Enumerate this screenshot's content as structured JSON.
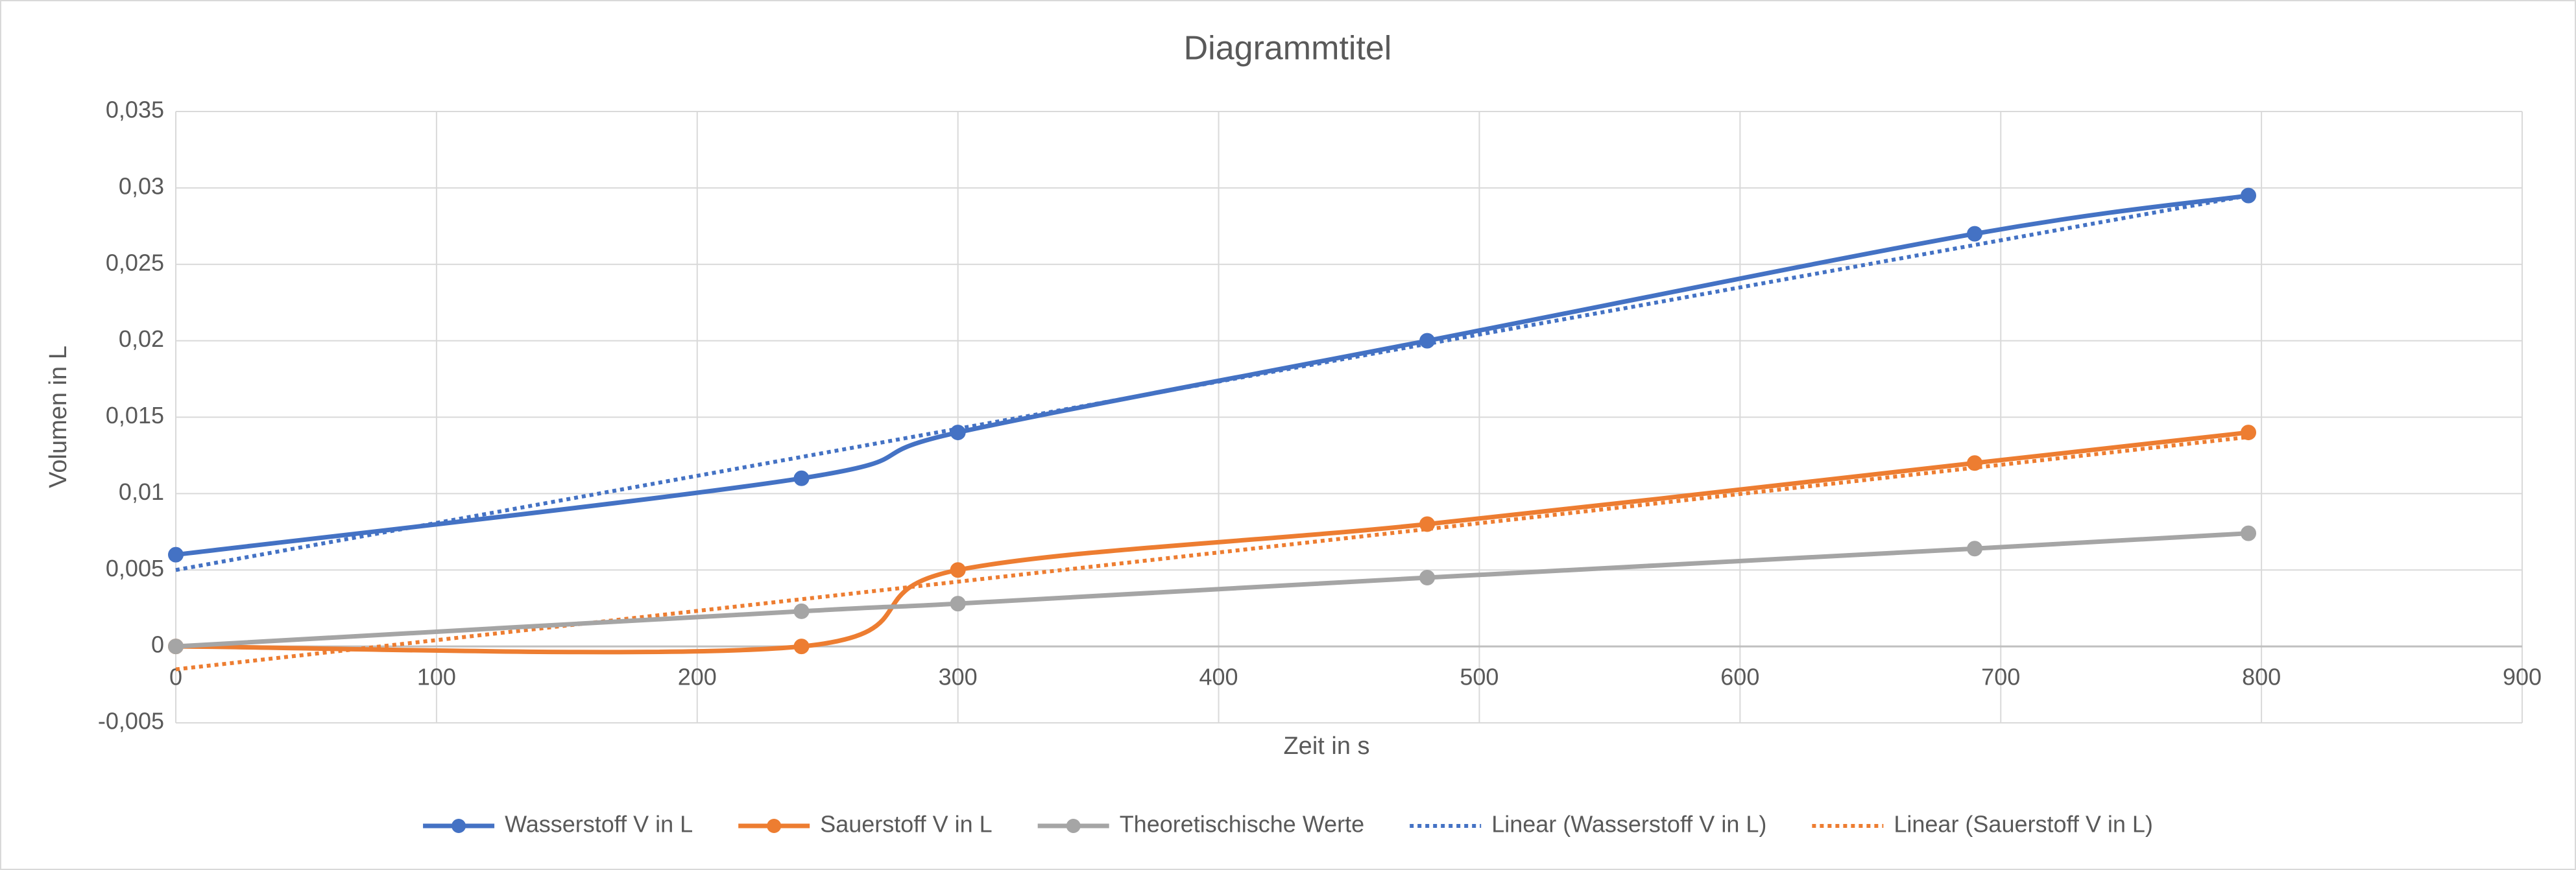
{
  "chart_data": {
    "type": "line",
    "title": "Diagrammtitel",
    "x_label": "Zeit in s",
    "y_label": "Volumen in L",
    "xlim": [
      0,
      900
    ],
    "xticks": [
      0,
      100,
      200,
      300,
      400,
      500,
      600,
      700,
      800,
      900
    ],
    "ylim": [
      -0.005,
      0.035
    ],
    "yticks": [
      {
        "value": -0.005,
        "label": "-0,005"
      },
      0,
      {
        "value": 0.005,
        "label": "0,005"
      },
      {
        "value": 0.01,
        "label": "0,01"
      },
      {
        "value": 0.015,
        "label": "0,015"
      },
      {
        "value": 0.02,
        "label": "0,02"
      },
      {
        "value": 0.025,
        "label": "0,025"
      },
      {
        "value": 0.03,
        "label": "0,03"
      },
      {
        "value": 0.035,
        "label": "0,035"
      }
    ],
    "grid": true,
    "smooth": true,
    "legend": "bottom",
    "series": [
      {
        "name": "Wasserstoff V in L",
        "color": "#4472c4",
        "style": "solid",
        "markers": true,
        "x": [
          0,
          240,
          300,
          480,
          690,
          795
        ],
        "values": [
          0.006,
          0.011,
          0.014,
          0.02,
          0.027,
          0.0295
        ]
      },
      {
        "name": "Sauerstoff V in L",
        "color": "#ed7d31",
        "style": "solid",
        "markers": true,
        "x": [
          0,
          240,
          300,
          480,
          690,
          795
        ],
        "values": [
          0,
          0,
          0.005,
          0.008,
          0.012,
          0.014
        ]
      },
      {
        "name": "Theoretischische Werte",
        "color": "#a5a5a5",
        "style": "solid",
        "markers": true,
        "x": [
          0,
          240,
          300,
          480,
          690,
          795
        ],
        "values": [
          0,
          0.0023,
          0.0028,
          0.0045,
          0.0064,
          0.0074
        ]
      },
      {
        "name": "Linear (Wasserstoff V in L)",
        "color": "#4472c4",
        "style": "dotted",
        "markers": false,
        "x": [
          0,
          795
        ],
        "values": [
          0.005,
          0.0295
        ]
      },
      {
        "name": "Linear (Sauerstoff V in L)",
        "color": "#ed7d31",
        "style": "dotted",
        "markers": false,
        "x": [
          0,
          795
        ],
        "values": [
          -0.0015,
          0.0137
        ]
      }
    ]
  }
}
